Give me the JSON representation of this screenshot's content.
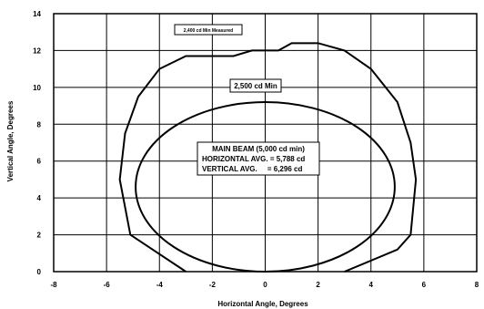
{
  "chart_data": {
    "type": "line",
    "xlabel": "Horizontal Angle, Degrees",
    "ylabel": "Vertical Angle, Degrees",
    "xlim": [
      -8,
      8
    ],
    "ylim": [
      0,
      14
    ],
    "x_ticks": [
      "-8",
      "-6",
      "-4",
      "-2",
      "0",
      "2",
      "4",
      "6",
      "8"
    ],
    "y_ticks": [
      "0",
      "2",
      "4",
      "6",
      "8",
      "10",
      "12",
      "14"
    ],
    "grid": true,
    "series": [
      {
        "name": "2,500 cd Min",
        "points": [
          [
            -3.0,
            0.0
          ],
          [
            -5.1,
            2.0
          ],
          [
            -5.5,
            5.0
          ],
          [
            -5.3,
            7.5
          ],
          [
            -4.8,
            9.5
          ],
          [
            -4.0,
            11.0
          ],
          [
            -3.0,
            11.7
          ],
          [
            -1.2,
            11.7
          ],
          [
            -0.5,
            12.0
          ],
          [
            0.5,
            12.0
          ],
          [
            1.0,
            12.4
          ],
          [
            2.0,
            12.4
          ],
          [
            3.0,
            12.0
          ],
          [
            4.0,
            11.0
          ],
          [
            5.0,
            9.2
          ],
          [
            5.5,
            7.0
          ],
          [
            5.7,
            5.0
          ],
          [
            5.5,
            2.0
          ],
          [
            5.0,
            1.2
          ],
          [
            3.0,
            0.0
          ]
        ]
      },
      {
        "name": "MAIN BEAM (5,000 cd min)",
        "ellipse": {
          "cx": 0,
          "cy": 4.6,
          "rx": 4.9,
          "ry": 4.6
        }
      }
    ],
    "annotations": {
      "measured": "2,400 cd Min Measured",
      "min_2500": "2,500 cd Min",
      "main_beam": "MAIN BEAM (5,000 cd min)",
      "horizontal_avg": "HORIZONTAL AVG. = 5,788 cd",
      "vertical_avg": "VERTICAL AVG.     = 6,296 cd"
    }
  }
}
